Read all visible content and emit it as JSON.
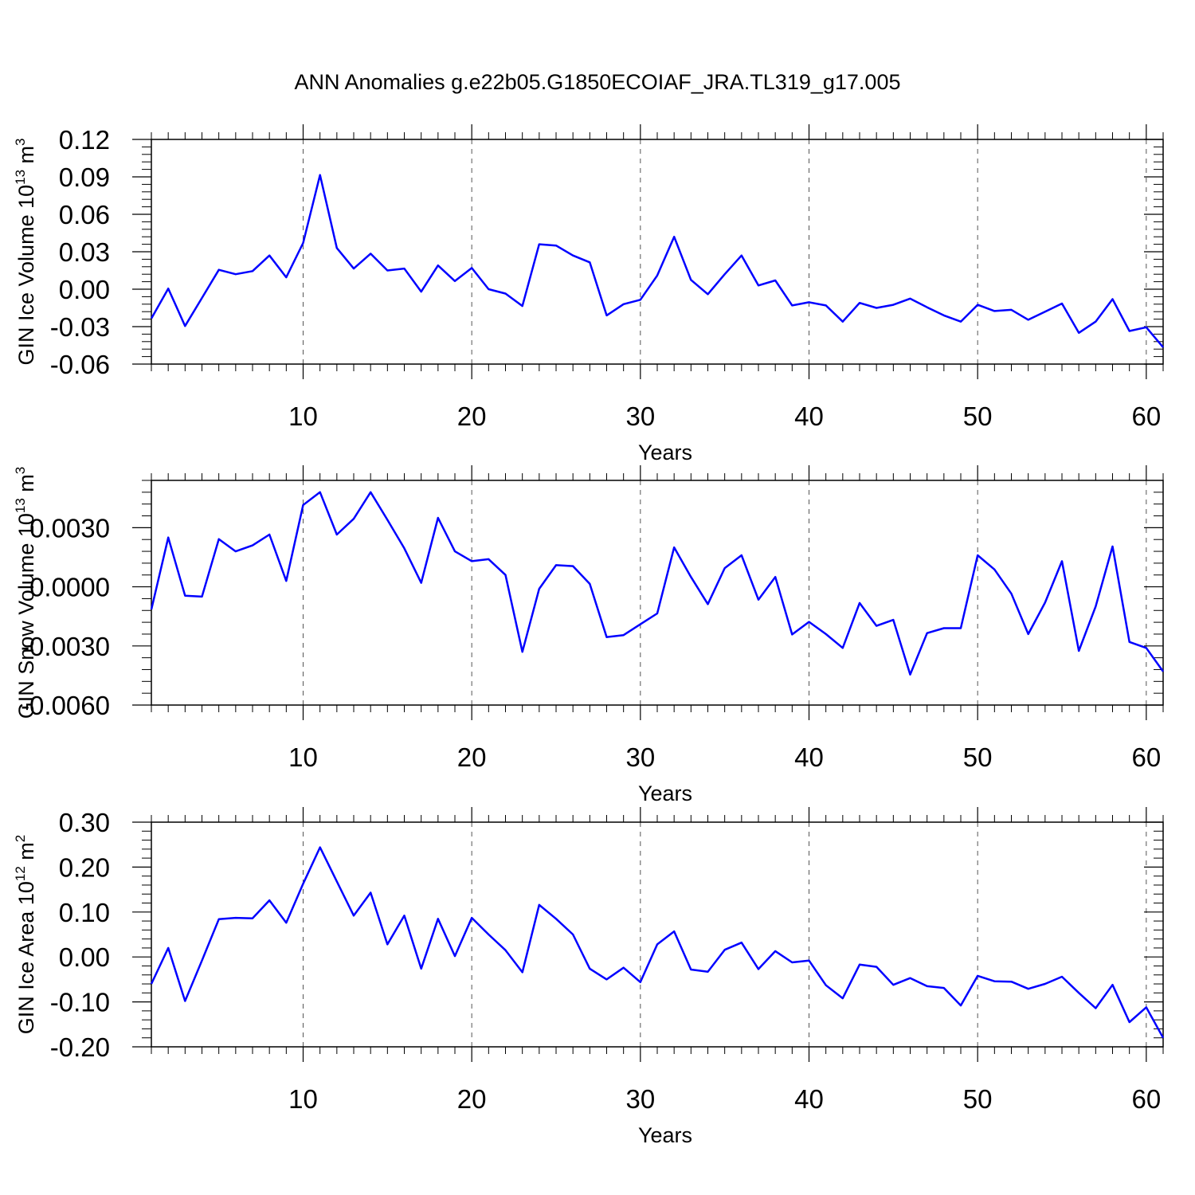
{
  "title": "ANN Anomalies g.e22b05.G1850ECOIAF_JRA.TL319_g17.005",
  "line_color": "#0000ff",
  "chart_data": [
    {
      "type": "line",
      "ylabel": "GIN Ice Volume 10",
      "ylabel_sup": "13",
      "ylabel_unit": "m",
      "ylabel_unit_sup": "3",
      "xlabel": "Years",
      "xlim": [
        1,
        61
      ],
      "ylim": [
        -0.06,
        0.12
      ],
      "xticks": [
        10,
        20,
        30,
        40,
        50,
        60
      ],
      "xtick_labels": [
        "10",
        "20",
        "30",
        "40",
        "50",
        "60"
      ],
      "yticks": [
        -0.06,
        -0.03,
        0.0,
        0.03,
        0.06,
        0.09,
        0.12
      ],
      "ytick_labels": [
        "-0.06",
        "-0.03",
        "0.00",
        "0.03",
        "0.06",
        "0.09",
        "0.12"
      ],
      "x": [
        1,
        2,
        3,
        4,
        5,
        6,
        7,
        8,
        9,
        10,
        11,
        12,
        13,
        14,
        15,
        16,
        17,
        18,
        19,
        20,
        21,
        22,
        23,
        24,
        25,
        26,
        27,
        28,
        29,
        30,
        31,
        32,
        33,
        34,
        35,
        36,
        37,
        38,
        39,
        40,
        41,
        42,
        43,
        44,
        45,
        46,
        47,
        48,
        49,
        50,
        51,
        52,
        53,
        54,
        55,
        56,
        57,
        58,
        59,
        60,
        61
      ],
      "values": [
        -0.0235,
        0.0005,
        -0.0295,
        -0.007,
        0.0155,
        0.012,
        0.0145,
        0.027,
        0.0095,
        0.037,
        0.0915,
        0.033,
        0.0165,
        0.0285,
        0.015,
        0.0165,
        -0.002,
        0.019,
        0.0065,
        0.017,
        0.0,
        -0.0035,
        -0.0135,
        0.036,
        0.035,
        0.027,
        0.0215,
        -0.021,
        -0.012,
        -0.0085,
        0.011,
        0.042,
        0.0075,
        -0.004,
        0.012,
        0.027,
        0.003,
        0.007,
        -0.013,
        -0.0105,
        -0.013,
        -0.026,
        -0.011,
        -0.015,
        -0.0125,
        -0.0075,
        -0.0145,
        -0.021,
        -0.026,
        -0.0125,
        -0.0175,
        -0.0165,
        -0.0245,
        -0.018,
        -0.0115,
        -0.035,
        -0.026,
        -0.008,
        -0.0335,
        -0.0305,
        -0.0465
      ]
    },
    {
      "type": "line",
      "ylabel": "GIN Snow Volume 10",
      "ylabel_sup": "13",
      "ylabel_unit": "m",
      "ylabel_unit_sup": "3",
      "xlabel": "Years",
      "xlim": [
        1,
        61
      ],
      "ylim": [
        -0.006,
        0.0054
      ],
      "xticks": [
        10,
        20,
        30,
        40,
        50,
        60
      ],
      "xtick_labels": [
        "10",
        "20",
        "30",
        "40",
        "50",
        "60"
      ],
      "yticks": [
        -0.006,
        -0.003,
        0.0,
        0.003
      ],
      "ytick_labels": [
        "-0.0060",
        "-0.0030",
        "0.0000",
        "0.0030"
      ],
      "x": [
        1,
        2,
        3,
        4,
        5,
        6,
        7,
        8,
        9,
        10,
        11,
        12,
        13,
        14,
        15,
        16,
        17,
        18,
        19,
        20,
        21,
        22,
        23,
        24,
        25,
        26,
        27,
        28,
        29,
        30,
        31,
        32,
        33,
        34,
        35,
        36,
        37,
        38,
        39,
        40,
        41,
        42,
        43,
        44,
        45,
        46,
        47,
        48,
        49,
        50,
        51,
        52,
        53,
        54,
        55,
        56,
        57,
        58,
        59,
        60,
        61
      ],
      "values": [
        -0.00115,
        0.0025,
        -0.00045,
        -0.0005,
        0.00242,
        0.0018,
        0.0021,
        0.00265,
        0.0003,
        0.00415,
        0.0048,
        0.00265,
        0.00345,
        0.0048,
        0.0034,
        0.00195,
        0.0002,
        0.0035,
        0.0018,
        0.0013,
        0.0014,
        0.0006,
        -0.0033,
        -0.0001,
        0.0011,
        0.00105,
        0.00015,
        -0.00255,
        -0.00245,
        -0.0019,
        -0.00135,
        0.002,
        0.0005,
        -0.00088,
        0.00095,
        0.0016,
        -0.00065,
        0.0005,
        -0.00242,
        -0.00178,
        -0.0024,
        -0.0031,
        -0.00082,
        -0.00198,
        -0.00168,
        -0.00445,
        -0.00235,
        -0.0021,
        -0.0021,
        0.0016,
        0.00088,
        -0.00035,
        -0.0024,
        -0.0008,
        0.0013,
        -0.00325,
        -0.001,
        0.00205,
        -0.0028,
        -0.0031,
        -0.0043
      ]
    },
    {
      "type": "line",
      "ylabel": "GIN Ice Area 10",
      "ylabel_sup": "12",
      "ylabel_unit": "m",
      "ylabel_unit_sup": "2",
      "xlabel": "Years",
      "xlim": [
        1,
        61
      ],
      "ylim": [
        -0.2,
        0.3
      ],
      "xticks": [
        10,
        20,
        30,
        40,
        50,
        60
      ],
      "xtick_labels": [
        "10",
        "20",
        "30",
        "40",
        "50",
        "60"
      ],
      "yticks": [
        -0.2,
        -0.1,
        0.0,
        0.1,
        0.2,
        0.3
      ],
      "ytick_labels": [
        "-0.20",
        "-0.10",
        "0.00",
        "0.10",
        "0.20",
        "0.30"
      ],
      "x": [
        1,
        2,
        3,
        4,
        5,
        6,
        7,
        8,
        9,
        10,
        11,
        12,
        13,
        14,
        15,
        16,
        17,
        18,
        19,
        20,
        21,
        22,
        23,
        24,
        25,
        26,
        27,
        28,
        29,
        30,
        31,
        32,
        33,
        34,
        35,
        36,
        37,
        38,
        39,
        40,
        41,
        42,
        43,
        44,
        45,
        46,
        47,
        48,
        49,
        50,
        51,
        52,
        53,
        54,
        55,
        56,
        57,
        58,
        59,
        60,
        61
      ],
      "values": [
        -0.06,
        0.02,
        -0.098,
        -0.008,
        0.084,
        0.087,
        0.086,
        0.126,
        0.076,
        0.163,
        0.244,
        0.168,
        0.092,
        0.143,
        0.028,
        0.092,
        -0.026,
        0.085,
        0.002,
        0.087,
        0.05,
        0.015,
        -0.034,
        0.116,
        0.085,
        0.05,
        -0.026,
        -0.05,
        -0.024,
        -0.056,
        0.028,
        0.057,
        -0.028,
        -0.033,
        0.016,
        0.032,
        -0.027,
        0.013,
        -0.012,
        -0.008,
        -0.063,
        -0.092,
        -0.017,
        -0.022,
        -0.062,
        -0.047,
        -0.065,
        -0.069,
        -0.108,
        -0.042,
        -0.054,
        -0.055,
        -0.071,
        -0.06,
        -0.044,
        -0.08,
        -0.114,
        -0.062,
        -0.145,
        -0.112,
        -0.18
      ]
    }
  ]
}
